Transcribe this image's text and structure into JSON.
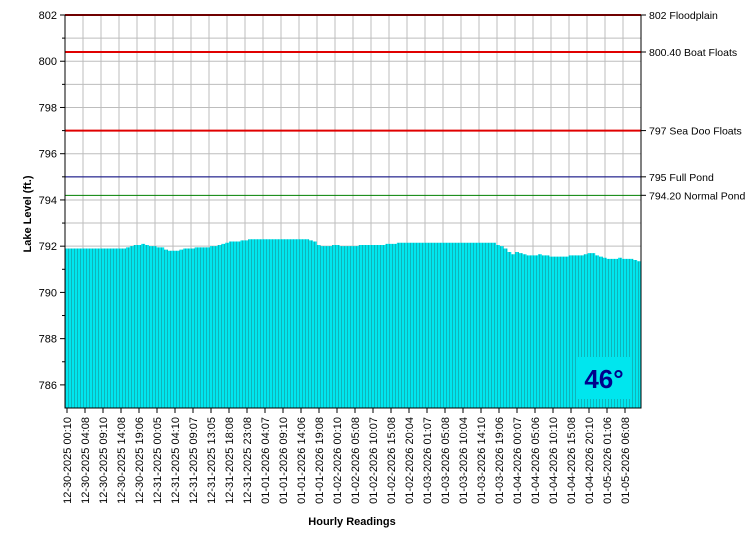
{
  "chart_data": {
    "type": "area",
    "xlabel": "Hourly Readings",
    "ylabel": "Lake Level (ft.)",
    "ylim": [
      785,
      802
    ],
    "y_ticks": [
      786,
      788,
      790,
      792,
      794,
      796,
      798,
      800,
      802
    ],
    "grid": true,
    "x_tick_labels": [
      "12-30-2025 00:10",
      "12-30-2025 04:08",
      "12-30-2025 09:10",
      "12-30-2025 14:08",
      "12-30-2025 19:06",
      "12-31-2025 00:05",
      "12-31-2025 04:10",
      "12-31-2025 09:07",
      "12-31-2025 13:05",
      "12-31-2025 18:08",
      "12-31-2025 23:08",
      "01-01-2026 04:07",
      "01-01-2026 09:10",
      "01-01-2026 14:06",
      "01-01-2026 19:08",
      "01-02-2026 00:10",
      "01-02-2026 05:08",
      "01-02-2026 10:07",
      "01-02-2026 15:08",
      "01-02-2026 20:04",
      "01-03-2026 01:07",
      "01-03-2026 05:08",
      "01-03-2026 10:04",
      "01-03-2026 14:10",
      "01-03-2026 19:06",
      "01-04-2026 00:07",
      "01-04-2026 05:06",
      "01-04-2026 10:10",
      "01-04-2026 15:08",
      "01-04-2026 20:10",
      "01-05-2026 01:06",
      "01-05-2026 06:08"
    ],
    "series": [
      {
        "values": [
          791.9,
          791.9,
          791.9,
          791.9,
          791.9,
          791.9,
          791.9,
          791.9,
          791.9,
          791.9,
          791.9,
          791.9,
          791.9,
          791.9,
          791.9,
          791.9,
          791.95,
          792.0,
          792.05,
          792.05,
          792.1,
          792.05,
          792.0,
          792.0,
          791.95,
          791.95,
          791.85,
          791.8,
          791.8,
          791.8,
          791.85,
          791.9,
          791.9,
          791.9,
          791.95,
          791.95,
          791.95,
          791.95,
          792.0,
          792.0,
          792.05,
          792.1,
          792.15,
          792.2,
          792.2,
          792.2,
          792.25,
          792.25,
          792.3,
          792.3,
          792.3,
          792.3,
          792.3,
          792.3,
          792.3,
          792.3,
          792.3,
          792.3,
          792.3,
          792.3,
          792.3,
          792.3,
          792.3,
          792.3,
          792.25,
          792.2,
          792.05,
          792.0,
          792.0,
          792.0,
          792.05,
          792.05,
          792.0,
          792.0,
          792.0,
          792.0,
          792.0,
          792.05,
          792.05,
          792.05,
          792.05,
          792.05,
          792.05,
          792.05,
          792.1,
          792.1,
          792.1,
          792.15,
          792.15,
          792.15,
          792.15,
          792.15,
          792.15,
          792.15,
          792.15,
          792.15,
          792.15,
          792.15,
          792.15,
          792.15,
          792.15,
          792.15,
          792.15,
          792.15,
          792.15,
          792.15,
          792.15,
          792.15,
          792.15,
          792.15,
          792.15,
          792.15,
          792.15,
          792.05,
          792.0,
          791.9,
          791.75,
          791.65,
          791.75,
          791.7,
          791.65,
          791.6,
          791.6,
          791.6,
          791.65,
          791.6,
          791.6,
          791.55,
          791.55,
          791.55,
          791.55,
          791.55,
          791.6,
          791.6,
          791.6,
          791.6,
          791.65,
          791.7,
          791.7,
          791.6,
          791.55,
          791.5,
          791.45,
          791.45,
          791.45,
          791.5,
          791.45,
          791.45,
          791.45,
          791.4,
          791.35
        ]
      }
    ],
    "reference_lines": [
      {
        "value": 802,
        "label": "802 Floodplain",
        "color": "#e00000"
      },
      {
        "value": 800.4,
        "label": "800.40 Boat Floats",
        "color": "#e00000"
      },
      {
        "value": 797,
        "label": "797 Sea Doo Floats",
        "color": "#e00000"
      },
      {
        "value": 795,
        "label": "795 Full Pond",
        "color": "#000080"
      },
      {
        "value": 794.2,
        "label": "794.20 Normal Pond",
        "color": "#008000"
      }
    ],
    "temperature": "46°"
  },
  "colors": {
    "area_fill": "#00e6ee",
    "area_stripe": "#1a8a8f",
    "grid": "#bdbdbd",
    "temp_text": "#00008b",
    "temp_bg": "#00e6ee"
  }
}
